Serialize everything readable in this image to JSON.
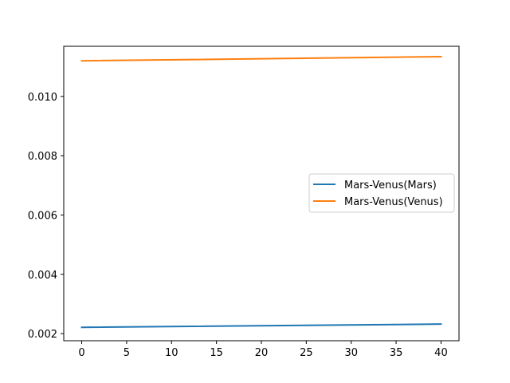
{
  "chart_data": {
    "type": "line",
    "title": "",
    "xlabel": "",
    "ylabel": "",
    "xlim": [
      -2,
      42
    ],
    "ylim": [
      0.00176,
      0.01169
    ],
    "xticks": [
      0,
      5,
      10,
      15,
      20,
      25,
      30,
      35,
      40
    ],
    "xtick_labels": [
      "0",
      "5",
      "10",
      "15",
      "20",
      "25",
      "30",
      "35",
      "40"
    ],
    "yticks": [
      0.002,
      0.004,
      0.006,
      0.008,
      0.01
    ],
    "ytick_labels": [
      "0.002",
      "0.004",
      "0.006",
      "0.008",
      "0.010"
    ],
    "grid": false,
    "legend_position": "center-right",
    "series": [
      {
        "name": "Mars-Venus(Mars)",
        "color": "#1f77b4",
        "x": [
          0,
          40
        ],
        "y": [
          0.00221,
          0.00232
        ]
      },
      {
        "name": "Mars-Venus(Venus)",
        "color": "#ff7f0e",
        "x": [
          0,
          40
        ],
        "y": [
          0.0112,
          0.01134
        ]
      }
    ]
  }
}
